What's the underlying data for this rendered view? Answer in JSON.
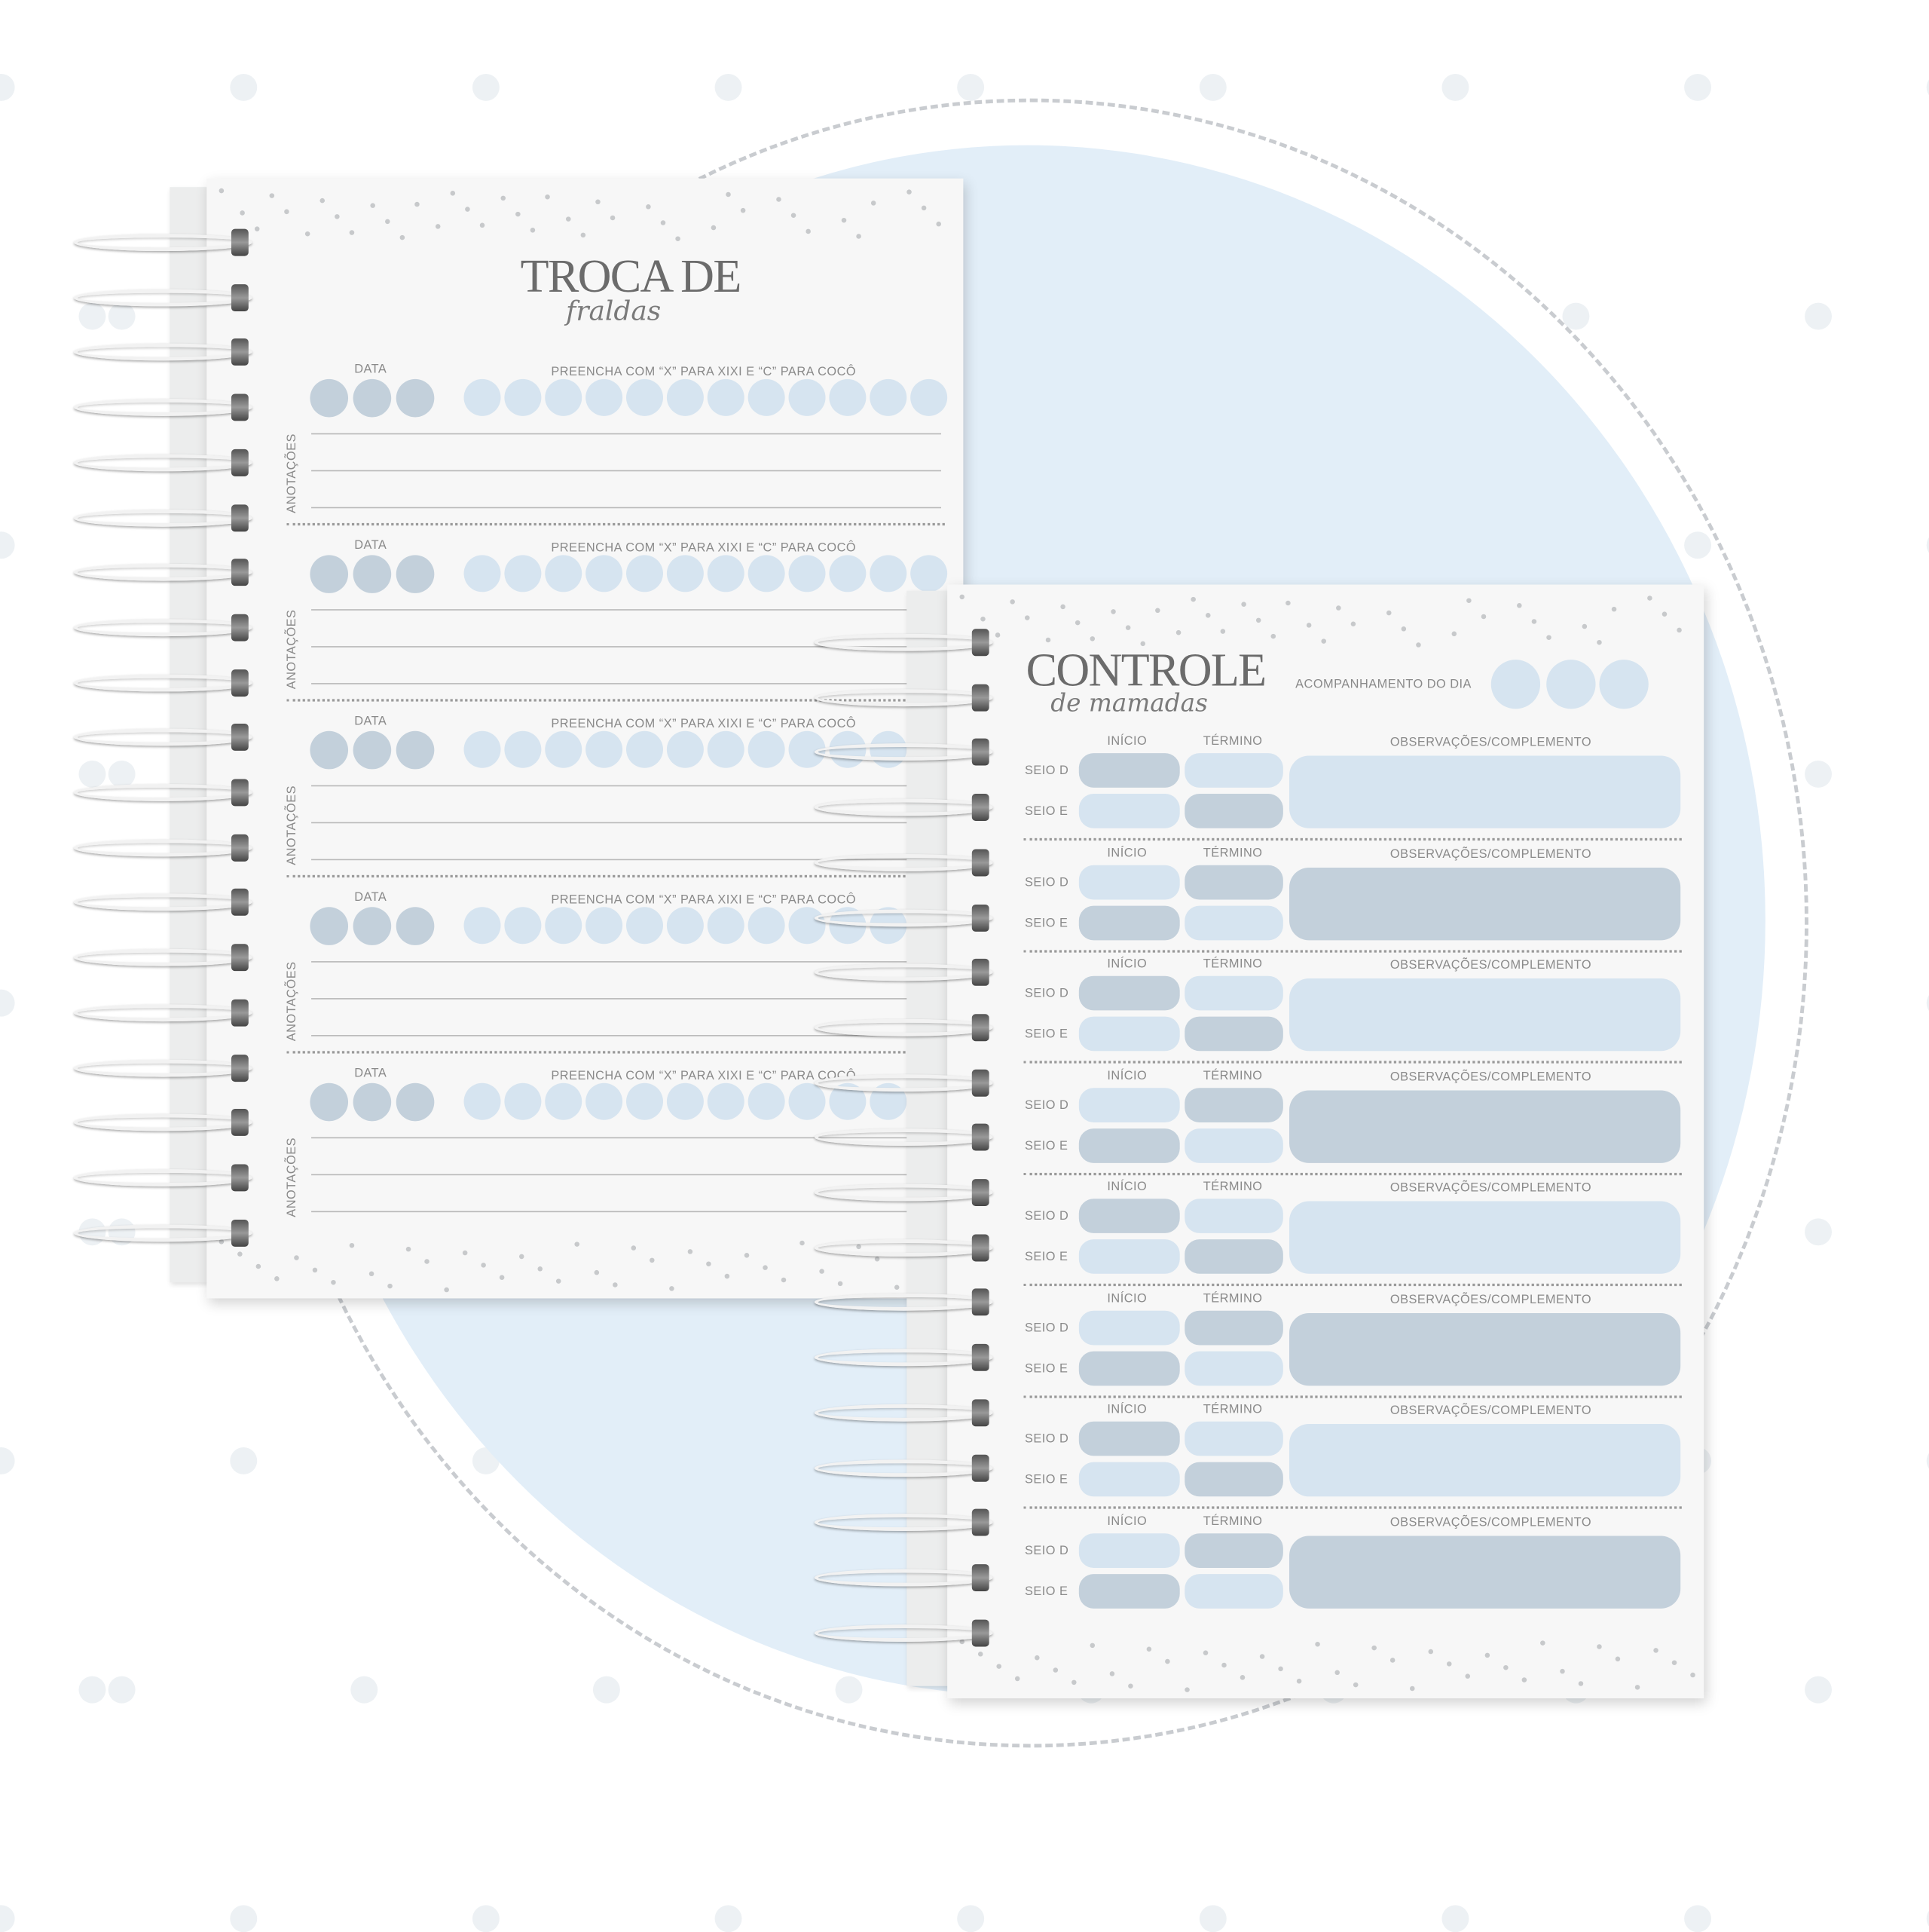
{
  "colors": {
    "background_circle": "#e2eef8",
    "light_blue": "#d6e4f0",
    "dark_blue": "#c3d0db",
    "text": "#8a8a8a",
    "title": "#6b6b6b"
  },
  "left_planner": {
    "title": "TROCA DE",
    "subtitle": "fraldas",
    "sections": [
      {
        "date_label": "DATA",
        "instruction": "PREENCHA COM “X” PARA XIXI E “C” PARA COCÔ",
        "notes_label": "ANOTAÇÕES"
      },
      {
        "date_label": "DATA",
        "instruction": "PREENCHA COM “X” PARA XIXI E “C” PARA COCÔ",
        "notes_label": "ANOTAÇÕES"
      },
      {
        "date_label": "DATA",
        "instruction": "PREENCHA COM “X” PARA XIXI E “C” PARA COCÔ",
        "notes_label": "ANOTAÇÕES"
      },
      {
        "date_label": "DATA",
        "instruction": "PREENCHA COM “X” PARA XIXI E “C” PARA COCÔ",
        "notes_label": "ANOTAÇÕES"
      },
      {
        "date_label": "DATA",
        "instruction": "PREENCHA COM “X” PARA XIXI E “C” PARA COCÔ",
        "notes_label": "ANOTAÇÕES"
      }
    ]
  },
  "right_planner": {
    "title": "CONTROLE",
    "subtitle": "de mamadas",
    "day_tracking_label": "ACOMPANHAMENTO DO DIA",
    "sections": [
      {
        "start": "INÍCIO",
        "end": "TÉRMINO",
        "notes": "OBSERVAÇÕES/COMPLEMENTO",
        "right": "SEIO D",
        "left": "SEIO E"
      },
      {
        "start": "INÍCIO",
        "end": "TÉRMINO",
        "notes": "OBSERVAÇÕES/COMPLEMENTO",
        "right": "SEIO D",
        "left": "SEIO E"
      },
      {
        "start": "INÍCIO",
        "end": "TÉRMINO",
        "notes": "OBSERVAÇÕES/COMPLEMENTO",
        "right": "SEIO D",
        "left": "SEIO E"
      },
      {
        "start": "INÍCIO",
        "end": "TÉRMINO",
        "notes": "OBSERVAÇÕES/COMPLEMENTO",
        "right": "SEIO D",
        "left": "SEIO E"
      },
      {
        "start": "INÍCIO",
        "end": "TÉRMINO",
        "notes": "OBSERVAÇÕES/COMPLEMENTO",
        "right": "SEIO D",
        "left": "SEIO E"
      },
      {
        "start": "INÍCIO",
        "end": "TÉRMINO",
        "notes": "OBSERVAÇÕES/COMPLEMENTO",
        "right": "SEIO D",
        "left": "SEIO E"
      },
      {
        "start": "INÍCIO",
        "end": "TÉRMINO",
        "notes": "OBSERVAÇÕES/COMPLEMENTO",
        "right": "SEIO D",
        "left": "SEIO E"
      },
      {
        "start": "INÍCIO",
        "end": "TÉRMINO",
        "notes": "OBSERVAÇÕES/COMPLEMENTO",
        "right": "SEIO D",
        "left": "SEIO E"
      }
    ]
  }
}
